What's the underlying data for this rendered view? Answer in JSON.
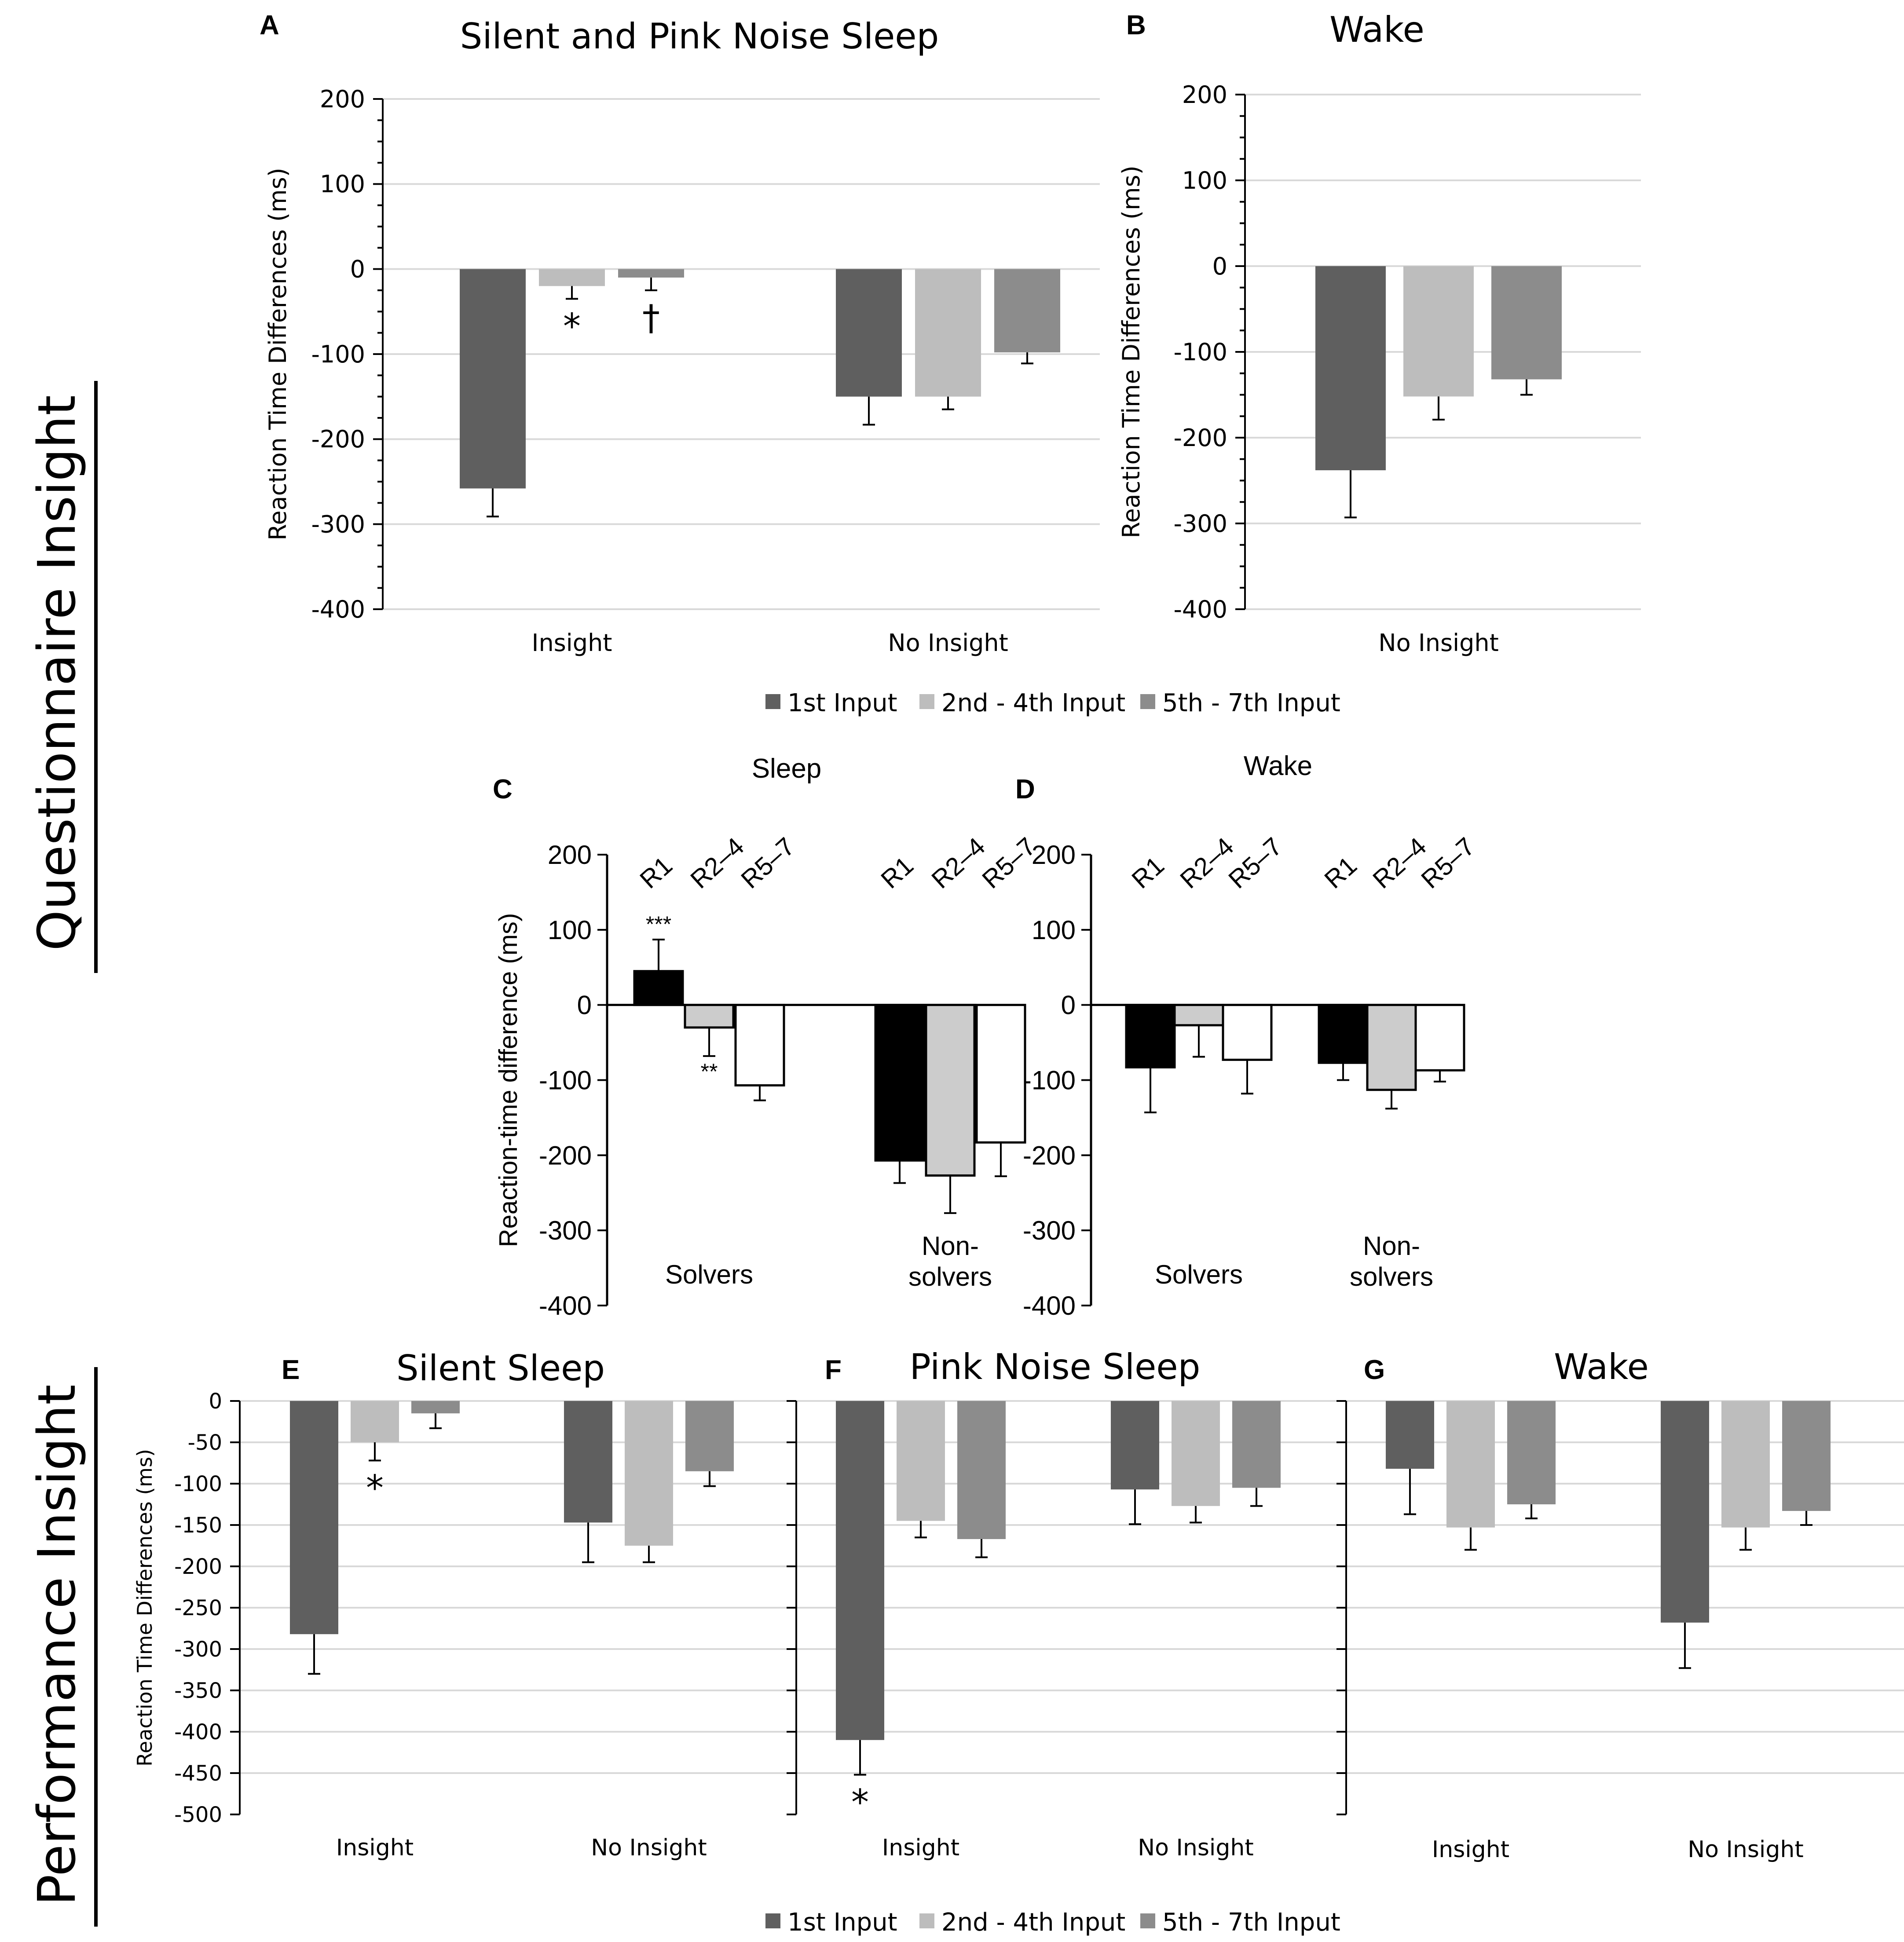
{
  "sections": {
    "questionnaire": "Questionnaire Insight",
    "performance": "Performance Insight"
  },
  "legend": {
    "first": "1st Input",
    "second": "2nd - 4th Input",
    "third": "5th - 7th Input"
  },
  "colors": {
    "first": "#5f5f5f",
    "second": "#bdbdbd",
    "third": "#8c8c8c",
    "r1": "#000000",
    "r24": "#cccccc",
    "r57": "#ffffff",
    "grid": "#d9d9d9",
    "axis": "#000000"
  },
  "chart_data": [
    {
      "panel": "A",
      "type": "bar",
      "title": "Silent and Pink Noise Sleep",
      "ylabel": "Reaction Time Differences (ms)",
      "ylim": [
        -400,
        200
      ],
      "yticks": [
        200,
        100,
        0,
        -100,
        -200,
        -300,
        -400
      ],
      "categories": [
        "Insight",
        "No Insight"
      ],
      "series": [
        {
          "name": "1st Input",
          "values": [
            -258,
            -150
          ],
          "errors": [
            33,
            33
          ]
        },
        {
          "name": "2nd - 4th Input",
          "values": [
            -20,
            -150
          ],
          "errors": [
            15,
            15
          ]
        },
        {
          "name": "5th - 7th Input",
          "values": [
            -10,
            -98
          ],
          "errors": [
            15,
            13
          ]
        }
      ],
      "annotations": [
        {
          "text": "*",
          "category": 0,
          "series": 1
        },
        {
          "text": "†",
          "category": 0,
          "series": 2
        }
      ]
    },
    {
      "panel": "B",
      "type": "bar",
      "title": "Wake",
      "ylabel": "Reaction Time Differences (ms)",
      "ylim": [
        -400,
        200
      ],
      "yticks": [
        200,
        100,
        0,
        -100,
        -200,
        -300,
        -400
      ],
      "categories": [
        "No Insight"
      ],
      "series": [
        {
          "name": "1st Input",
          "values": [
            -238
          ],
          "errors": [
            55
          ]
        },
        {
          "name": "2nd - 4th Input",
          "values": [
            -152
          ],
          "errors": [
            27
          ]
        },
        {
          "name": "5th - 7th Input",
          "values": [
            -132
          ],
          "errors": [
            18
          ]
        }
      ],
      "annotations": []
    },
    {
      "panel": "C",
      "type": "bar",
      "title": "Sleep",
      "ylabel": "Reaction-time difference (ms)",
      "ylim": [
        -400,
        200
      ],
      "yticks": [
        200,
        100,
        0,
        -100,
        -200,
        -300,
        -400
      ],
      "categories": [
        "Solvers",
        "Non-solvers"
      ],
      "category_lines": [
        [
          "Solvers"
        ],
        [
          "Non-",
          "solvers"
        ]
      ],
      "bar_labels": [
        "R1",
        "R2–4",
        "R5–7"
      ],
      "series": [
        {
          "name": "R1",
          "values": [
            45,
            -207
          ],
          "errors": [
            42,
            30
          ]
        },
        {
          "name": "R2–4",
          "values": [
            -30,
            -227
          ],
          "errors": [
            38,
            50
          ]
        },
        {
          "name": "R5–7",
          "values": [
            -107,
            -183
          ],
          "errors": [
            20,
            45
          ]
        }
      ],
      "annotations": [
        {
          "text": "***",
          "category": 0,
          "series": 0
        },
        {
          "text": "**",
          "category": 0,
          "series": 1
        }
      ]
    },
    {
      "panel": "D",
      "type": "bar",
      "title": "Wake",
      "ylabel": "",
      "ylim": [
        -400,
        200
      ],
      "yticks": [
        200,
        100,
        0,
        -100,
        -200,
        -300,
        -400
      ],
      "categories": [
        "Solvers",
        "Non-solvers"
      ],
      "category_lines": [
        [
          "Solvers"
        ],
        [
          "Non-",
          "solvers"
        ]
      ],
      "bar_labels": [
        "R1",
        "R2–4",
        "R5–7"
      ],
      "series": [
        {
          "name": "R1",
          "values": [
            -83,
            -77
          ],
          "errors": [
            60,
            23
          ]
        },
        {
          "name": "R2–4",
          "values": [
            -27,
            -113
          ],
          "errors": [
            42,
            25
          ]
        },
        {
          "name": "R5–7",
          "values": [
            -73,
            -87
          ],
          "errors": [
            45,
            15
          ]
        }
      ],
      "annotations": []
    },
    {
      "panel": "E",
      "type": "bar",
      "title": "Silent Sleep",
      "ylabel": "Reaction Time Differences (ms)",
      "ylim": [
        -500,
        0
      ],
      "yticks": [
        0,
        -50,
        -100,
        -150,
        -200,
        -250,
        -300,
        -350,
        -400,
        -450,
        -500
      ],
      "categories": [
        "Insight",
        "No Insight"
      ],
      "series": [
        {
          "name": "1st Input",
          "values": [
            -282,
            -147
          ],
          "errors": [
            48,
            48
          ]
        },
        {
          "name": "2nd - 4th Input",
          "values": [
            -50,
            -175
          ],
          "errors": [
            22,
            20
          ]
        },
        {
          "name": "5th - 7th Input",
          "values": [
            -15,
            -85
          ],
          "errors": [
            18,
            18
          ]
        }
      ],
      "annotations": [
        {
          "text": "*",
          "category": 0,
          "series": 1
        }
      ]
    },
    {
      "panel": "F",
      "type": "bar",
      "title": "Pink Noise Sleep",
      "ylabel": "",
      "ylim": [
        -500,
        0
      ],
      "yticks": [
        0,
        -50,
        -100,
        -150,
        -200,
        -250,
        -300,
        -350,
        -400,
        -450,
        -500
      ],
      "categories": [
        "Insight",
        "No Insight"
      ],
      "series": [
        {
          "name": "1st Input",
          "values": [
            -410,
            -107
          ],
          "errors": [
            42,
            42
          ]
        },
        {
          "name": "2nd - 4th Input",
          "values": [
            -145,
            -127
          ],
          "errors": [
            20,
            20
          ]
        },
        {
          "name": "5th - 7th Input",
          "values": [
            -167,
            -105
          ],
          "errors": [
            22,
            22
          ]
        }
      ],
      "annotations": [
        {
          "text": "*",
          "category": 0,
          "series": 0
        }
      ]
    },
    {
      "panel": "G",
      "type": "bar",
      "title": "Wake",
      "ylabel": "",
      "ylim": [
        -500,
        0
      ],
      "yticks": [
        0,
        -50,
        -100,
        -150,
        -200,
        -250,
        -300,
        -350,
        -400,
        -450,
        -500
      ],
      "categories": [
        "Insight",
        "No Insight"
      ],
      "series": [
        {
          "name": "1st Input",
          "values": [
            -82,
            -268
          ],
          "errors": [
            55,
            55
          ]
        },
        {
          "name": "2nd - 4th Input",
          "values": [
            -153,
            -153
          ],
          "errors": [
            27,
            27
          ]
        },
        {
          "name": "5th - 7th Input",
          "values": [
            -125,
            -133
          ],
          "errors": [
            17,
            17
          ]
        }
      ],
      "annotations": []
    }
  ]
}
